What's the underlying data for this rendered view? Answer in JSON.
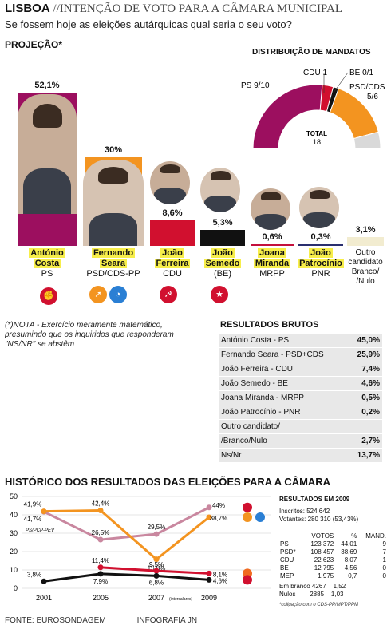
{
  "header": {
    "city": "LISBOA",
    "title_rest": " //INTENÇÃO DE VOTO PARA A CÂMARA MUNICIPAL",
    "question": "Se fossem hoje as eleições autárquicas qual seria o seu voto?"
  },
  "projection": {
    "label": "PROJEÇÃO*",
    "candidates": [
      {
        "name_line1": "António",
        "name_line2": "Costa",
        "party": "PS",
        "value": 52.1,
        "label": "52,1%",
        "color": "#9c0f5f"
      },
      {
        "name_line1": "Fernando",
        "name_line2": "Seara",
        "party": "PSD/CDS-PP",
        "value": 30,
        "label": "30%",
        "color": "#f39420"
      },
      {
        "name_line1": "João",
        "name_line2": "Ferreira",
        "party": "CDU",
        "value": 8.6,
        "label": "8,6%",
        "color": "#d1102f"
      },
      {
        "name_line1": "João",
        "name_line2": "Semedo",
        "party": "(BE)",
        "value": 5.3,
        "label": "5,3%",
        "color": "#111111"
      },
      {
        "name_line1": "Joana",
        "name_line2": "Miranda",
        "party": "MRPP",
        "value": 0.6,
        "label": "0,6%",
        "color": "#c4103c"
      },
      {
        "name_line1": "João",
        "name_line2": "Patrocínio",
        "party": "PNR",
        "value": 0.3,
        "label": "0,3%",
        "color": "#2a2f6e"
      },
      {
        "name_line1": "Outro",
        "name_line2": "candidato",
        "name_line3": "Branco/",
        "name_line4": "/Nulo",
        "party": "",
        "value": 3.1,
        "label": "3,1%",
        "color": "#f2ecd0"
      }
    ]
  },
  "mandates": {
    "title": "DISTRIBUIÇÃO DE MANDATOS",
    "total_label": "TOTAL",
    "total": "18",
    "labels": {
      "ps": "PS 9/10",
      "cdu": "CDU 1",
      "be": "BE 0/1",
      "psd_1": "PSD/CDS",
      "psd_2": "5/6"
    },
    "slices": [
      {
        "name": "PS",
        "value": 9.5,
        "color": "#9c0f5f"
      },
      {
        "name": "CDU",
        "value": 1,
        "color": "#d1102f"
      },
      {
        "name": "BE",
        "value": 0.5,
        "color": "#111111"
      },
      {
        "name": "PSD/CDS",
        "value": 5.5,
        "color": "#f39420"
      },
      {
        "name": "rest",
        "value": 1.5,
        "color": "#d9d9d9"
      }
    ]
  },
  "note": "(*)NOTA - Exercício meramente matemático, presumindo que os inquiridos que responderam \"NS/NR\" se abstêm",
  "raw_results": {
    "title": "RESULTADOS BRUTOS",
    "rows": [
      {
        "label": "António Costa - PS",
        "value": "45,0%"
      },
      {
        "label": "Fernando Seara - PSD+CDS",
        "value": "25,9%"
      },
      {
        "label": "João Ferreira - CDU",
        "value": "7,4%"
      },
      {
        "label": "João Semedo - BE",
        "value": "4,6%"
      },
      {
        "label": "Joana Miranda - MRPP",
        "value": "0,5%"
      },
      {
        "label": "João Patrocínio - PNR",
        "value": "0,2%"
      },
      {
        "label": "Outro candidato/",
        "value": ""
      },
      {
        "label": "/Branco/Nulo",
        "value": "2,7%"
      },
      {
        "label": "Ns/Nr",
        "value": "13,7%"
      }
    ]
  },
  "history": {
    "title": "HISTÓRICO DOS RESULTADOS DAS ELEIÇÕES PARA A CÂMARA",
    "pcp_pev_label": "PS/PCP-PEV",
    "intercalares": "(intercalares)"
  },
  "chart_data": {
    "type": "line",
    "x": [
      "2001",
      "2005",
      "2007",
      "2009"
    ],
    "ylim": [
      0,
      50
    ],
    "yticks": [
      "0",
      "10",
      "20",
      "30",
      "40",
      "50"
    ],
    "series": [
      {
        "name": "PS",
        "color": "#c9879f",
        "values": [
          41.7,
          26.5,
          29.5,
          44
        ],
        "labels": [
          "41,7%",
          "26,5%",
          "29,5%",
          "44%"
        ]
      },
      {
        "name": "PSD",
        "color": "#f39420",
        "values": [
          41.9,
          42.4,
          15.8,
          38.7
        ],
        "labels": [
          "41,9%",
          "42,4%",
          "15,8%",
          "38,7%"
        ]
      },
      {
        "name": "CDU",
        "color": "#d1102f",
        "values": [
          null,
          11.4,
          9.5,
          8.1
        ],
        "labels": [
          "",
          "11,4%",
          "9,5%",
          "8,1%"
        ]
      },
      {
        "name": "BE",
        "color": "#111111",
        "values": [
          3.8,
          7.9,
          6.8,
          4.6
        ],
        "labels": [
          "3,8%",
          "7,9%",
          "6,8%",
          "4,6%"
        ]
      }
    ]
  },
  "results_2009": {
    "title": "RESULTADOS EM 2009",
    "inscritos": "Inscritos: 524 642",
    "votantes": "Votantes: 280 310 (53,43%)",
    "headers": [
      "",
      "VOTOS",
      "%",
      "MAND."
    ],
    "rows": [
      [
        "PS",
        "123 372",
        "44,01",
        "9"
      ],
      [
        "PSD*",
        "108 457",
        "38,69",
        "7"
      ],
      [
        "CDU",
        "22 623",
        "8,07",
        "1"
      ],
      [
        "BE",
        "12 795",
        "4,56",
        "0"
      ],
      [
        "MEP",
        "1 975",
        "0,7",
        "0"
      ]
    ],
    "branco": [
      "Em branco",
      "4267",
      "1,52"
    ],
    "nulos": [
      "Nulos",
      "2885",
      "1,03"
    ],
    "note": "*coligação com o CDS-PP/MPT/PPM"
  },
  "footer": {
    "source": "FONTE: EUROSONDAGEM",
    "credit": "INFOGRAFIA JN"
  }
}
